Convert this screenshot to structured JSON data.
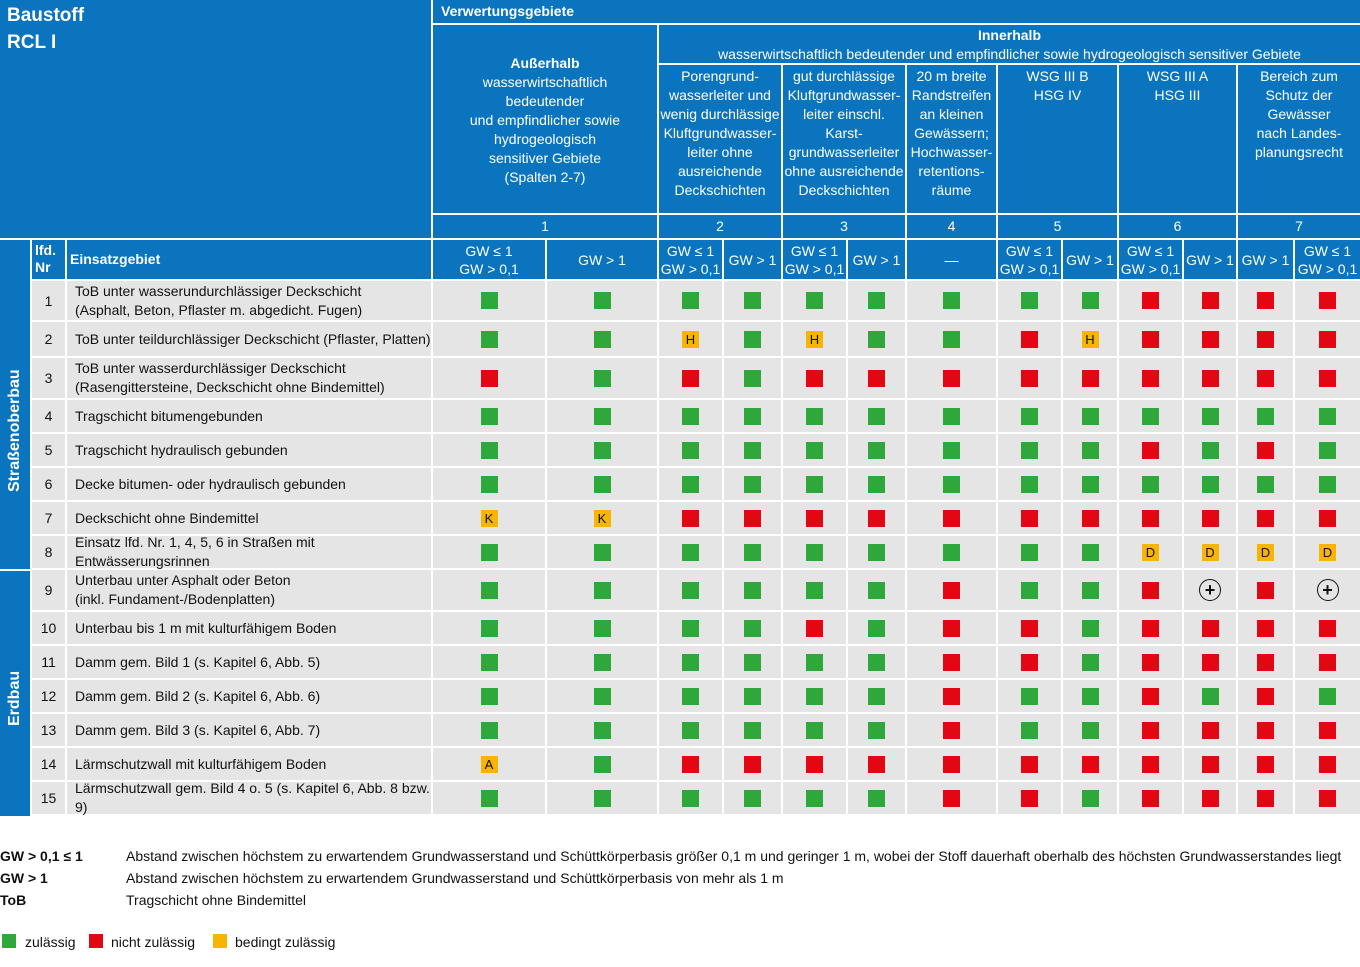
{
  "header": {
    "baustoff_label": "Baustoff",
    "material": "RCL I",
    "verwertungsgebiete": "Verwertungsgebiete",
    "innerhalb_title": "Innerhalb",
    "innerhalb_sub": "wasserwirtschaftlich bedeutender und empfindlicher sowie hydrogeologisch sensitiver Gebiete",
    "ausserhalb_title": "Außerhalb",
    "ausserhalb_lines": [
      "wasserwirtschaftlich",
      "bedeutender",
      "und empfindlicher sowie",
      "hydrogeologisch",
      "sensitiver Gebiete",
      "(Spalten 2-7)"
    ],
    "col_groups": [
      {
        "lines": [
          "Porengrund-",
          "wasserleiter und",
          "wenig durchlässige",
          "Kluftgrundwasser-",
          "leiter ohne",
          "ausreichende",
          "Deckschichten"
        ]
      },
      {
        "lines": [
          "gut durchlässige",
          "Kluftgrundwasser-",
          "leiter einschl. Karst-",
          "grundwasserleiter",
          "ohne ausreichende",
          "Deckschichten"
        ]
      },
      {
        "lines": [
          "20 m breite",
          "Randstreifen",
          "an kleinen",
          "Gewässern;",
          "Hochwasser-",
          "retentions-",
          "räume"
        ]
      },
      {
        "lines": [
          "WSG III B",
          "HSG IV"
        ]
      },
      {
        "lines": [
          "WSG III A",
          "HSG III"
        ]
      },
      {
        "lines": [
          "Bereich zum",
          "Schutz der",
          "Gewässer",
          "nach Landes-",
          "planungsrecht"
        ]
      }
    ],
    "col_numbers": [
      "1",
      "2",
      "3",
      "4",
      "5",
      "6",
      "7"
    ],
    "lfd_nr": [
      "lfd.",
      "Nr"
    ],
    "einsatzgebiet": "Einsatzgebiet",
    "sub_cols": [
      [
        "GW ≤ 1",
        "GW > 0,1"
      ],
      [
        "GW > 1"
      ],
      [
        "GW ≤ 1",
        "GW > 0,1"
      ],
      [
        "GW > 1"
      ],
      [
        "GW ≤ 1",
        "GW > 0,1"
      ],
      [
        "GW > 1"
      ],
      [
        "—"
      ],
      [
        "GW ≤ 1",
        "GW > 0,1"
      ],
      [
        "GW > 1"
      ],
      [
        "GW ≤ 1",
        "GW > 0,1"
      ],
      [
        "GW > 1"
      ],
      [
        "GW > 1"
      ],
      [
        "GW ≤ 1",
        "GW > 0,1"
      ]
    ]
  },
  "sections": {
    "strassenoberbau": "Straßenoberbau",
    "erdbau": "Erdbau"
  },
  "rows": [
    {
      "nr": "1",
      "lines": [
        "ToB unter wasserundurchlässiger Deckschicht",
        "(Asphalt, Beton, Pflaster m. abgedicht. Fugen)"
      ],
      "marks": [
        "g",
        "g",
        "g",
        "g",
        "g",
        "g",
        "g",
        "g",
        "g",
        "r",
        "r",
        "r",
        "r"
      ]
    },
    {
      "nr": "2",
      "lines": [
        "ToB unter teildurchlässiger Deckschicht (Pflaster, Platten)"
      ],
      "marks": [
        "g",
        "g",
        "y:H",
        "g",
        "y:H",
        "g",
        "g",
        "r",
        "y:H",
        "r",
        "r",
        "r",
        "r"
      ]
    },
    {
      "nr": "3",
      "lines": [
        "ToB unter wasserdurchlässiger Deckschicht",
        "(Rasengittersteine, Deckschicht ohne Bindemittel)"
      ],
      "marks": [
        "r",
        "g",
        "r",
        "g",
        "r",
        "r",
        "r",
        "r",
        "r",
        "r",
        "r",
        "r",
        "r"
      ]
    },
    {
      "nr": "4",
      "lines": [
        "Tragschicht bitumengebunden"
      ],
      "marks": [
        "g",
        "g",
        "g",
        "g",
        "g",
        "g",
        "g",
        "g",
        "g",
        "g",
        "g",
        "g",
        "g"
      ]
    },
    {
      "nr": "5",
      "lines": [
        "Tragschicht hydraulisch gebunden"
      ],
      "marks": [
        "g",
        "g",
        "g",
        "g",
        "g",
        "g",
        "g",
        "g",
        "g",
        "r",
        "g",
        "r",
        "g"
      ]
    },
    {
      "nr": "6",
      "lines": [
        "Decke bitumen- oder hydraulisch gebunden"
      ],
      "marks": [
        "g",
        "g",
        "g",
        "g",
        "g",
        "g",
        "g",
        "g",
        "g",
        "g",
        "g",
        "g",
        "g"
      ]
    },
    {
      "nr": "7",
      "lines": [
        "Deckschicht ohne Bindemittel"
      ],
      "marks": [
        "y:K",
        "y:K",
        "r",
        "r",
        "r",
        "r",
        "r",
        "r",
        "r",
        "r",
        "r",
        "r",
        "r"
      ]
    },
    {
      "nr": "8",
      "lines": [
        "Einsatz lfd. Nr. 1, 4, 5, 6 in Straßen mit Entwässerungsrinnen"
      ],
      "marks": [
        "g",
        "g",
        "g",
        "g",
        "g",
        "g",
        "g",
        "g",
        "g",
        "y:D",
        "y:D",
        "y:D",
        "y:D"
      ]
    },
    {
      "nr": "9",
      "lines": [
        "Unterbau unter Asphalt oder Beton",
        "(inkl. Fundament-/Bodenplatten)"
      ],
      "marks": [
        "g",
        "g",
        "g",
        "g",
        "g",
        "g",
        "r",
        "g",
        "g",
        "r",
        "plus",
        "r",
        "plus"
      ]
    },
    {
      "nr": "10",
      "lines": [
        "Unterbau bis 1 m mit kulturfähigem Boden"
      ],
      "marks": [
        "g",
        "g",
        "g",
        "g",
        "r",
        "g",
        "r",
        "r",
        "g",
        "r",
        "r",
        "r",
        "r"
      ]
    },
    {
      "nr": "11",
      "lines": [
        "Damm gem. Bild 1 (s. Kapitel 6, Abb. 5)"
      ],
      "marks": [
        "g",
        "g",
        "g",
        "g",
        "g",
        "g",
        "r",
        "r",
        "g",
        "r",
        "r",
        "r",
        "r"
      ]
    },
    {
      "nr": "12",
      "lines": [
        "Damm gem. Bild 2 (s. Kapitel 6, Abb. 6)"
      ],
      "marks": [
        "g",
        "g",
        "g",
        "g",
        "g",
        "g",
        "r",
        "g",
        "g",
        "r",
        "g",
        "r",
        "g"
      ]
    },
    {
      "nr": "13",
      "lines": [
        "Damm gem. Bild 3 (s. Kapitel 6, Abb. 7)"
      ],
      "marks": [
        "g",
        "g",
        "g",
        "g",
        "g",
        "g",
        "r",
        "g",
        "g",
        "r",
        "r",
        "r",
        "r"
      ]
    },
    {
      "nr": "14",
      "lines": [
        "Lärmschutzwall mit kulturfähigem Boden"
      ],
      "marks": [
        "y:A",
        "g",
        "r",
        "r",
        "r",
        "r",
        "r",
        "r",
        "r",
        "r",
        "r",
        "r",
        "r"
      ]
    },
    {
      "nr": "15",
      "lines": [
        "Lärmschutzwall gem. Bild 4 o. 5 (s. Kapitel 6, Abb. 8 bzw. 9)"
      ],
      "marks": [
        "g",
        "g",
        "g",
        "g",
        "g",
        "g",
        "r",
        "r",
        "g",
        "r",
        "r",
        "r",
        "r"
      ]
    }
  ],
  "legend": {
    "definitions": [
      {
        "key": "GW > 0,1 ≤ 1",
        "value": "Abstand zwischen höchstem zu erwartendem Grundwasserstand und Schüttkörperbasis größer 0,1 m und geringer 1 m, wobei der Stoff dauerhaft oberhalb des höchsten Grundwasserstandes liegt"
      },
      {
        "key": "GW > 1",
        "value": "Abstand zwischen höchstem zu erwartendem Grundwasserstand und Schüttkörperbasis von mehr als 1 m"
      },
      {
        "key": "ToB",
        "value": "Tragschicht ohne Bindemittel"
      }
    ],
    "status": [
      {
        "label": "zulässig",
        "color": "#2ea83a"
      },
      {
        "label": "nicht zulässig",
        "color": "#e30613"
      },
      {
        "label": "bedingt zulässig",
        "color": "#f7b500"
      }
    ]
  },
  "colors": {
    "header_blue": "#0a74be",
    "row_gray": "#e5e5e5",
    "green": "#2ea83a",
    "red": "#e30613",
    "yellow": "#f7b500"
  }
}
